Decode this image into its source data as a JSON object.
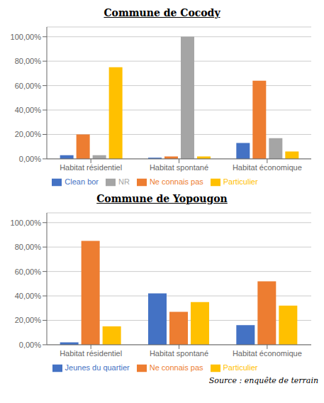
{
  "chart_data": [
    {
      "type": "bar",
      "title": "Commune de Cocody",
      "categories": [
        "Habitat résidentiel",
        "Habitat spontané",
        "Habitat économique"
      ],
      "series": [
        {
          "name": "Clean bor",
          "color": "#4472C4",
          "values": [
            3.0,
            1.0,
            13.0
          ]
        },
        {
          "name": "Ne connais pas",
          "color": "#ED7D31",
          "values": [
            20.0,
            2.0,
            64.0
          ]
        },
        {
          "name": "NR",
          "color": "#A5A5A5",
          "values": [
            3.0,
            100.0,
            17.0
          ]
        },
        {
          "name": "Particulier",
          "color": "#FFC000",
          "values": [
            75.0,
            2.0,
            6.0
          ]
        }
      ],
      "ylim": [
        0,
        108
      ],
      "yticks": [
        {
          "value": 0,
          "label": "0,00%"
        },
        {
          "value": 20,
          "label": "20,00%"
        },
        {
          "value": 40,
          "label": "40,00%"
        },
        {
          "value": 60,
          "label": "60,00%"
        },
        {
          "value": 80,
          "label": "80,00%"
        },
        {
          "value": 100,
          "label": "100,00%"
        }
      ],
      "grid": true,
      "legend": "bottom"
    },
    {
      "type": "bar",
      "title": "Commune de Yopougon",
      "categories": [
        "Habitat résidentiel",
        "Habitat spontané",
        "Habitat économique"
      ],
      "series": [
        {
          "name": "Jeunes du quartier",
          "color": "#4472C4",
          "values": [
            2.0,
            42.0,
            16.0
          ]
        },
        {
          "name": "Ne connais pas",
          "color": "#ED7D31",
          "values": [
            85.0,
            27.0,
            52.0
          ]
        },
        {
          "name": "Particulier",
          "color": "#FFC000",
          "values": [
            15.0,
            35.0,
            32.0
          ]
        }
      ],
      "ylim": [
        0,
        108
      ],
      "yticks": [
        {
          "value": 0,
          "label": "0,00%"
        },
        {
          "value": 20,
          "label": "20,00%"
        },
        {
          "value": 40,
          "label": "40,00%"
        },
        {
          "value": 60,
          "label": "60,00%"
        },
        {
          "value": 80,
          "label": "80,00%"
        },
        {
          "value": 100,
          "label": "100,00%"
        }
      ],
      "grid": true,
      "legend": "bottom",
      "annotations": [
        "Source : enquête de terrain"
      ]
    }
  ]
}
